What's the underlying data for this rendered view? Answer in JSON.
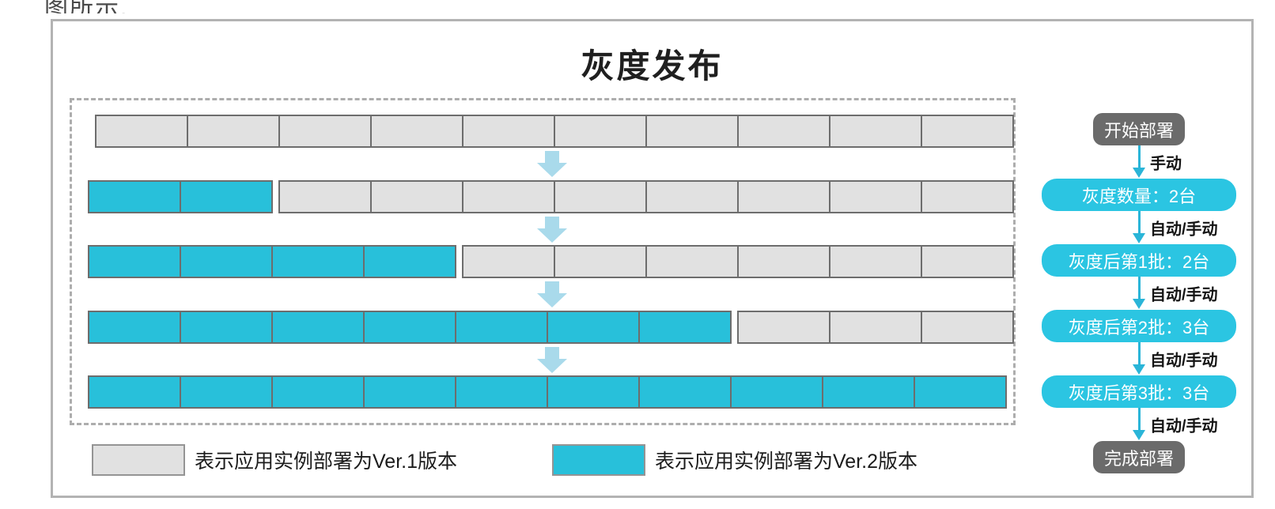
{
  "page": {
    "top_caption": "图所示."
  },
  "diagram": {
    "title": "灰度发布",
    "total_instances": 10,
    "rows": [
      {
        "ver2_instances": 0,
        "ver1_instances": 10
      },
      {
        "ver2_instances": 2,
        "ver1_instances": 8
      },
      {
        "ver2_instances": 4,
        "ver1_instances": 6
      },
      {
        "ver2_instances": 7,
        "ver1_instances": 3
      },
      {
        "ver2_instances": 10,
        "ver1_instances": 0
      }
    ],
    "legend": [
      {
        "version": "ver1",
        "label": "表示应用实例部署为Ver.1版本"
      },
      {
        "version": "ver2",
        "label": "表示应用实例部署为Ver.2版本"
      }
    ],
    "colors": {
      "ver1_fill": "#e1e1e1",
      "ver2_fill": "#28c0da",
      "box_border": "#6d6d6d",
      "panel_border": "#b3b3b3",
      "dashed_border": "#adadad",
      "flow_pill": "#2bc5e2",
      "flow_dark": "#6b6b6b",
      "block_arrow": "#a9daeb",
      "thin_arrow": "#2ab5d8"
    }
  },
  "flow": {
    "nodes": [
      {
        "type": "dark",
        "label": "开始部署"
      },
      {
        "type": "arrow",
        "label": "手动"
      },
      {
        "type": "cyan",
        "label": "灰度数量：2台"
      },
      {
        "type": "arrow",
        "label": "自动/手动"
      },
      {
        "type": "cyan",
        "label": "灰度后第1批：2台"
      },
      {
        "type": "arrow",
        "label": "自动/手动"
      },
      {
        "type": "cyan",
        "label": "灰度后第2批：3台"
      },
      {
        "type": "arrow",
        "label": "自动/手动"
      },
      {
        "type": "cyan",
        "label": "灰度后第3批：3台"
      },
      {
        "type": "arrow",
        "label": "自动/手动"
      },
      {
        "type": "dark",
        "label": "完成部署"
      }
    ]
  }
}
